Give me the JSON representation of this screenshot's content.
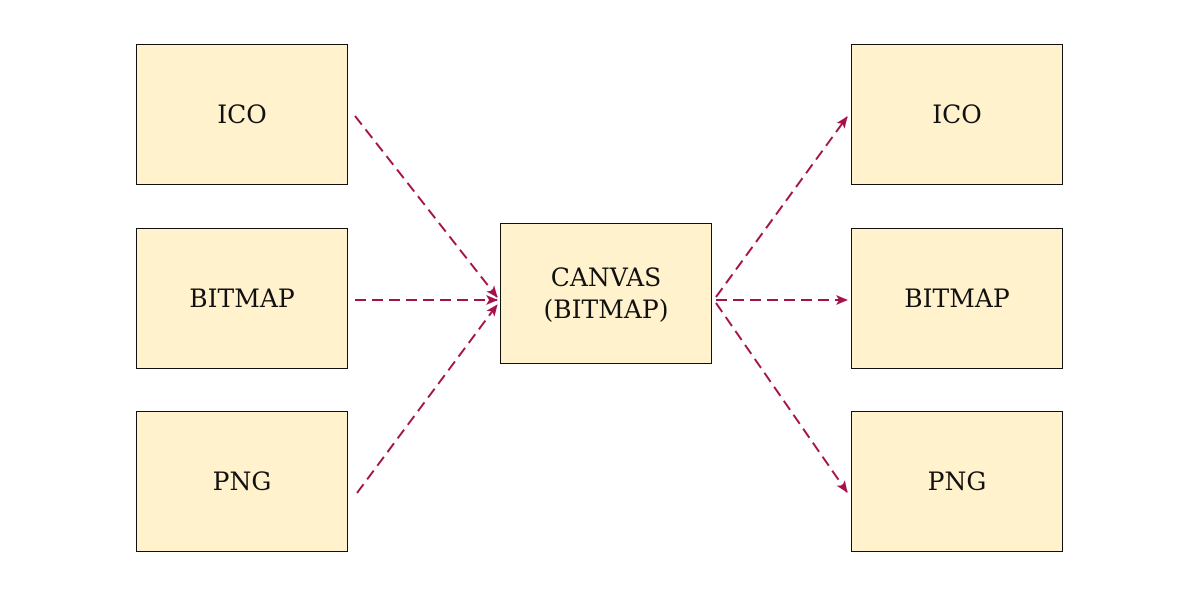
{
  "colors": {
    "box_fill": "#fff2cc",
    "box_border": "#111111",
    "arrow": "#a3134a",
    "text": "#111111"
  },
  "inputs": [
    {
      "label": "ICO"
    },
    {
      "label": "BITMAP"
    },
    {
      "label": "PNG"
    }
  ],
  "center": {
    "line1": "CANVAS",
    "line2": "(BITMAP)"
  },
  "outputs": [
    {
      "label": "ICO"
    },
    {
      "label": "BITMAP"
    },
    {
      "label": "PNG"
    }
  ],
  "edges": [
    {
      "from": "input-ico",
      "to": "canvas",
      "style": "dashed"
    },
    {
      "from": "input-bitmap",
      "to": "canvas",
      "style": "dashed"
    },
    {
      "from": "input-png",
      "to": "canvas",
      "style": "dashed"
    },
    {
      "from": "canvas",
      "to": "output-ico",
      "style": "dashed"
    },
    {
      "from": "canvas",
      "to": "output-bitmap",
      "style": "dashed"
    },
    {
      "from": "canvas",
      "to": "output-png",
      "style": "dashed"
    }
  ]
}
